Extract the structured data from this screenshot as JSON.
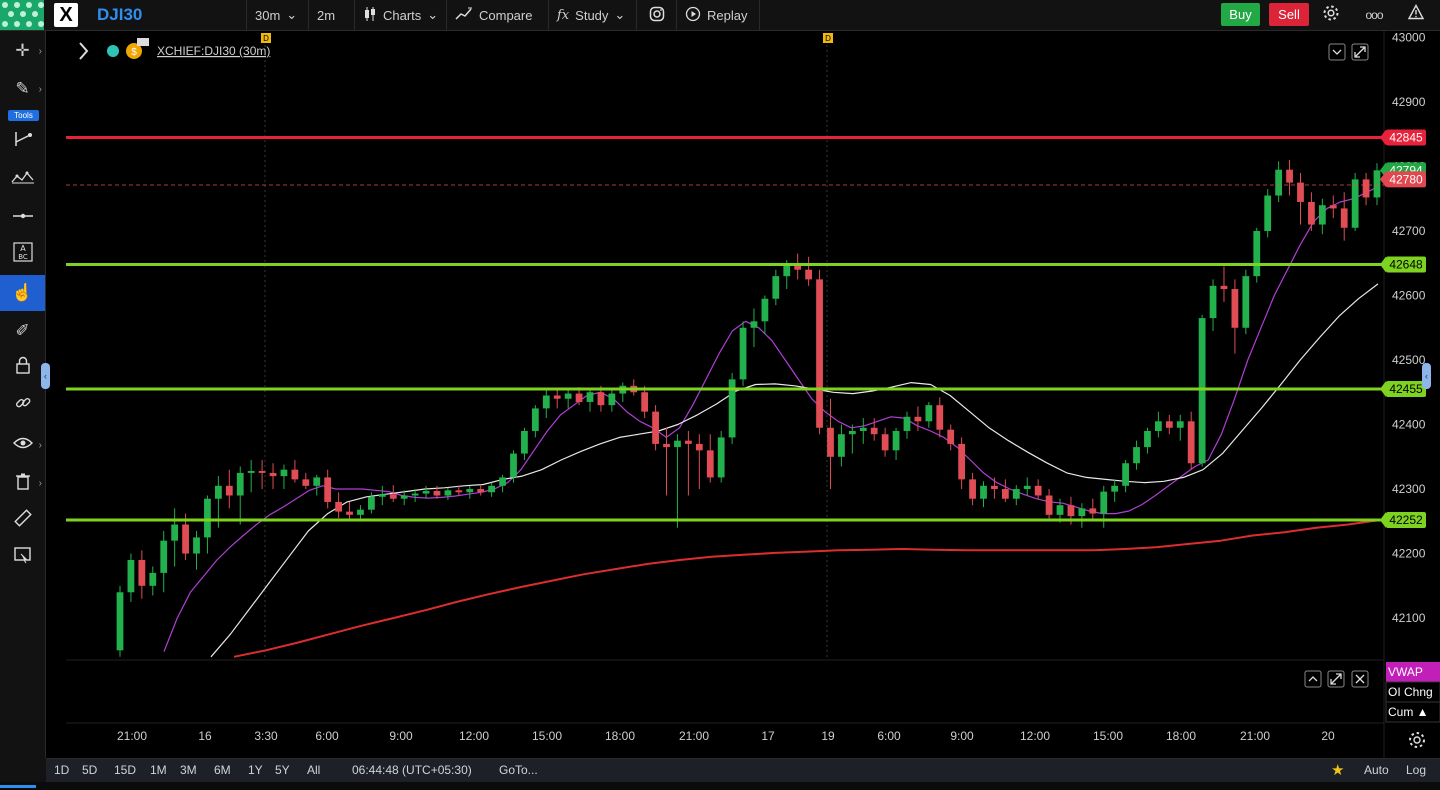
{
  "header": {
    "symbol": "DJI30",
    "app_logo_letter": "X",
    "interval": "30m",
    "interval2": "2m",
    "charts_label": "Charts",
    "compare_label": "Compare",
    "study_label": "Study",
    "replay_label": "Replay",
    "buy_label": "Buy",
    "sell_label": "Sell",
    "study_prefix": "fx",
    "more_label": "ooo"
  },
  "sidebar": {
    "tools_badge": "Tools",
    "items": [
      {
        "name": "crosshair-tool",
        "glyph": "✛"
      },
      {
        "name": "pencil-tool",
        "glyph": "✎"
      },
      {
        "name": "measure-tool",
        "glyph": "⊢"
      },
      {
        "name": "pattern-tool",
        "glyph": "⋯"
      },
      {
        "name": "line-tool",
        "glyph": "—"
      },
      {
        "name": "text-tool",
        "glyph": "A"
      },
      {
        "name": "cursor-tool",
        "glyph": "☝"
      },
      {
        "name": "highlighter-tool",
        "glyph": "✐"
      },
      {
        "name": "lock-tool",
        "glyph": "🔒"
      },
      {
        "name": "link-tool",
        "glyph": "⛓"
      },
      {
        "name": "eye-tool",
        "glyph": "👁"
      },
      {
        "name": "trash-tool",
        "glyph": "🗑"
      },
      {
        "name": "ruler-tool",
        "glyph": "📏"
      },
      {
        "name": "screenshot-tool",
        "glyph": "🖼"
      }
    ]
  },
  "chart_header": {
    "legend": "XCHIEF:DJI30 (30m)",
    "event_marker": "D"
  },
  "colors": {
    "bull": "#22b14c",
    "bear": "#e04d55",
    "resistance": "#e8223a",
    "support": "#7ed321",
    "ema_fast": "#b03fd6",
    "ema_slow": "#e8e8e8",
    "sma_long": "#dc2e2e",
    "last_price_green": "#22a845",
    "last_price_red": "#e0474f",
    "vwap": "#c21fb8"
  },
  "chart_data": {
    "type": "candlestick",
    "title": "XCHIEF:DJI30 (30m)",
    "y_ticks": [
      43000,
      42900,
      42800,
      42700,
      42600,
      42500,
      42400,
      42300,
      42200,
      42100
    ],
    "ylim": [
      42035,
      43010
    ],
    "x_tick_labels": [
      "21:00",
      "16",
      "3:30",
      "6:00",
      "9:00",
      "12:00",
      "15:00",
      "18:00",
      "21:00",
      "17",
      "19",
      "6:00",
      "9:00",
      "12:00",
      "15:00",
      "18:00",
      "21:00",
      "20"
    ],
    "horizontal_lines": [
      {
        "value": 42845,
        "label": "42845",
        "kind": "resistance"
      },
      {
        "value": 42648,
        "label": "42648",
        "kind": "support"
      },
      {
        "value": 42455,
        "label": "42455",
        "kind": "support"
      },
      {
        "value": 42252,
        "label": "42252",
        "kind": "support"
      }
    ],
    "last_price_labels": [
      {
        "value": 42794,
        "label": "42794",
        "kind": "green"
      },
      {
        "value": 42780,
        "label": "42780",
        "kind": "red"
      }
    ],
    "event_markers": [
      "D",
      "D"
    ],
    "candles_ohlc": [
      [
        42050,
        42150,
        42040,
        42140
      ],
      [
        42140,
        42200,
        42125,
        42190
      ],
      [
        42190,
        42205,
        42130,
        42150
      ],
      [
        42150,
        42180,
        42135,
        42170
      ],
      [
        42170,
        42235,
        42140,
        42220
      ],
      [
        42220,
        42270,
        42180,
        42245
      ],
      [
        42245,
        42262,
        42190,
        42200
      ],
      [
        42200,
        42235,
        42175,
        42225
      ],
      [
        42225,
        42290,
        42200,
        42285
      ],
      [
        42285,
        42320,
        42240,
        42305
      ],
      [
        42305,
        42330,
        42270,
        42290
      ],
      [
        42290,
        42335,
        42245,
        42325
      ],
      [
        42325,
        42345,
        42295,
        42328
      ],
      [
        42328,
        42345,
        42300,
        42325
      ],
      [
        42325,
        42340,
        42300,
        42320
      ],
      [
        42320,
        42338,
        42300,
        42330
      ],
      [
        42330,
        42345,
        42310,
        42315
      ],
      [
        42315,
        42325,
        42300,
        42305
      ],
      [
        42305,
        42322,
        42290,
        42318
      ],
      [
        42318,
        42330,
        42270,
        42280
      ],
      [
        42280,
        42295,
        42255,
        42265
      ],
      [
        42265,
        42280,
        42250,
        42260
      ],
      [
        42260,
        42275,
        42250,
        42268
      ],
      [
        42268,
        42295,
        42262,
        42288
      ],
      [
        42288,
        42305,
        42275,
        42292
      ],
      [
        42292,
        42306,
        42280,
        42285
      ],
      [
        42285,
        42298,
        42275,
        42290
      ],
      [
        42290,
        42300,
        42280,
        42293
      ],
      [
        42293,
        42305,
        42285,
        42297
      ],
      [
        42297,
        42305,
        42285,
        42290
      ],
      [
        42290,
        42302,
        42283,
        42298
      ],
      [
        42298,
        42305,
        42290,
        42295
      ],
      [
        42295,
        42305,
        42285,
        42300
      ],
      [
        42300,
        42307,
        42290,
        42295
      ],
      [
        42295,
        42310,
        42288,
        42305
      ],
      [
        42305,
        42322,
        42295,
        42318
      ],
      [
        42318,
        42360,
        42310,
        42355
      ],
      [
        42355,
        42395,
        42345,
        42390
      ],
      [
        42390,
        42430,
        42380,
        42425
      ],
      [
        42425,
        42455,
        42410,
        42445
      ],
      [
        42445,
        42455,
        42425,
        42440
      ],
      [
        42440,
        42455,
        42425,
        42448
      ],
      [
        42448,
        42458,
        42430,
        42435
      ],
      [
        42435,
        42455,
        42420,
        42450
      ],
      [
        42450,
        42460,
        42420,
        42430
      ],
      [
        42430,
        42455,
        42420,
        42448
      ],
      [
        42448,
        42465,
        42435,
        42460
      ],
      [
        42460,
        42470,
        42445,
        42450
      ],
      [
        42450,
        42460,
        42410,
        42420
      ],
      [
        42420,
        42430,
        42360,
        42370
      ],
      [
        42370,
        42395,
        42290,
        42365
      ],
      [
        42365,
        42385,
        42240,
        42375
      ],
      [
        42375,
        42390,
        42290,
        42370
      ],
      [
        42370,
        42385,
        42300,
        42360
      ],
      [
        42360,
        42385,
        42310,
        42318
      ],
      [
        42318,
        42390,
        42310,
        42380
      ],
      [
        42380,
        42480,
        42370,
        42470
      ],
      [
        42470,
        42560,
        42460,
        42550
      ],
      [
        42550,
        42580,
        42520,
        42560
      ],
      [
        42560,
        42600,
        42540,
        42595
      ],
      [
        42595,
        42640,
        42585,
        42630
      ],
      [
        42630,
        42655,
        42610,
        42648
      ],
      [
        42648,
        42665,
        42625,
        42640
      ],
      [
        42640,
        42660,
        42615,
        42625
      ],
      [
        42625,
        42640,
        42385,
        42395
      ],
      [
        42395,
        42440,
        42300,
        42350
      ],
      [
        42350,
        42400,
        42335,
        42385
      ],
      [
        42385,
        42400,
        42355,
        42390
      ],
      [
        42390,
        42410,
        42370,
        42395
      ],
      [
        42395,
        42410,
        42375,
        42385
      ],
      [
        42385,
        42395,
        42350,
        42360
      ],
      [
        42360,
        42395,
        42345,
        42390
      ],
      [
        42390,
        42420,
        42378,
        42412
      ],
      [
        42412,
        42428,
        42390,
        42405
      ],
      [
        42405,
        42435,
        42395,
        42430
      ],
      [
        42430,
        42442,
        42380,
        42392
      ],
      [
        42392,
        42400,
        42360,
        42370
      ],
      [
        42370,
        42380,
        42300,
        42315
      ],
      [
        42315,
        42325,
        42275,
        42285
      ],
      [
        42285,
        42312,
        42272,
        42305
      ],
      [
        42305,
        42318,
        42285,
        42300
      ],
      [
        42300,
        42315,
        42280,
        42285
      ],
      [
        42285,
        42306,
        42275,
        42300
      ],
      [
        42300,
        42318,
        42290,
        42305
      ],
      [
        42305,
        42315,
        42285,
        42290
      ],
      [
        42290,
        42300,
        42252,
        42260
      ],
      [
        42260,
        42285,
        42248,
        42275
      ],
      [
        42275,
        42288,
        42245,
        42258
      ],
      [
        42258,
        42278,
        42240,
        42270
      ],
      [
        42270,
        42285,
        42250,
        42262
      ],
      [
        42262,
        42305,
        42240,
        42296
      ],
      [
        42296,
        42315,
        42280,
        42305
      ],
      [
        42305,
        42345,
        42295,
        42340
      ],
      [
        42340,
        42375,
        42330,
        42365
      ],
      [
        42365,
        42395,
        42355,
        42390
      ],
      [
        42390,
        42420,
        42380,
        42405
      ],
      [
        42405,
        42415,
        42385,
        42395
      ],
      [
        42395,
        42415,
        42375,
        42405
      ],
      [
        42405,
        42420,
        42330,
        42340
      ],
      [
        42340,
        42570,
        42335,
        42565
      ],
      [
        42565,
        42625,
        42545,
        42615
      ],
      [
        42615,
        42645,
        42590,
        42610
      ],
      [
        42610,
        42625,
        42510,
        42550
      ],
      [
        42550,
        42640,
        42540,
        42630
      ],
      [
        42630,
        42705,
        42620,
        42700
      ],
      [
        42700,
        42765,
        42690,
        42755
      ],
      [
        42755,
        42808,
        42745,
        42795
      ],
      [
        42795,
        42810,
        42755,
        42775
      ],
      [
        42775,
        42790,
        42710,
        42745
      ],
      [
        42745,
        42760,
        42700,
        42710
      ],
      [
        42710,
        42750,
        42695,
        42740
      ],
      [
        42740,
        42755,
        42720,
        42735
      ],
      [
        42735,
        42760,
        42685,
        42705
      ],
      [
        42705,
        42790,
        42700,
        42780
      ],
      [
        42780,
        42790,
        42740,
        42752
      ],
      [
        42752,
        42805,
        42740,
        42794
      ]
    ],
    "series": [
      {
        "name": "",
        "values": [
          42048,
          42100,
          42140,
          42165,
          42190,
          42210,
          42228,
          42245,
          42260,
          42272,
          42285,
          42298,
          42305,
          42300,
          42300,
          42300,
          42298,
          42296,
          42290,
          42287,
          42286,
          42287,
          42289,
          42292,
          42295,
          42300,
          42310,
          42330,
          42360,
          42390,
          42415,
          42430,
          42445,
          42450,
          42440,
          42420,
          42405,
          42395,
          42380,
          42395,
          42430,
          42470,
          42510,
          42545,
          42560,
          42550,
          42530,
          42500,
          42470,
          42440,
          42420,
          42405,
          42395,
          42398,
          42405,
          42412,
          42410,
          42398,
          42390,
          42380,
          42365,
          42345,
          42325,
          42310,
          42300,
          42292,
          42285,
          42280,
          42278,
          42272,
          42266,
          42262,
          42262,
          42266,
          42276,
          42290,
          42305,
          42320,
          42335,
          42345,
          42385,
          42440,
          42500,
          42550,
          42600,
          42640,
          42680,
          42715,
          42735,
          42745,
          42750,
          42760,
          42770
        ]
      },
      {
        "name": "",
        "values": [
          42040,
          42075,
          42115,
          42155,
          42195,
          42235,
          42262,
          42280,
          42288,
          42292,
          42296,
          42300,
          42302,
          42305,
          42307,
          42315,
          42320,
          42330,
          42345,
          42358,
          42370,
          42380,
          42385,
          42390,
          42400,
          42415,
          42432,
          42452,
          42462,
          42463,
          42460,
          42455,
          42450,
          42448,
          42452,
          42458,
          42465,
          42462,
          42445,
          42420,
          42395,
          42375,
          42357,
          42340,
          42325,
          42318,
          42315,
          42312,
          42310,
          42312,
          42318,
          42330,
          42355,
          42390,
          42425,
          42462,
          42500,
          42535,
          42568,
          42595,
          42618
        ]
      },
      {
        "name": "",
        "values": [
          42040,
          42050,
          42062,
          42075,
          42088,
          42100,
          42112,
          42125,
          42137,
          42148,
          42158,
          42168,
          42176,
          42184,
          42190,
          42195,
          42198,
          42201,
          42203,
          42205,
          42206,
          42207,
          42206,
          42205,
          42205,
          42205,
          42205,
          42205,
          42207,
          42210,
          42215,
          42220,
          42228,
          42233,
          42240,
          42245,
          42252
        ]
      }
    ]
  },
  "indicator_panel": {
    "vwap": "VWAP",
    "oi": "OI Chng",
    "cum": "Cum ▲"
  },
  "bottom_bar": {
    "ranges": [
      "1D",
      "5D",
      "15D",
      "1M",
      "3M",
      "6M",
      "1Y",
      "5Y",
      "All"
    ],
    "clock": "06:44:48 (UTC+05:30)",
    "goto": "GoTo...",
    "auto": "Auto",
    "log": "Log"
  }
}
